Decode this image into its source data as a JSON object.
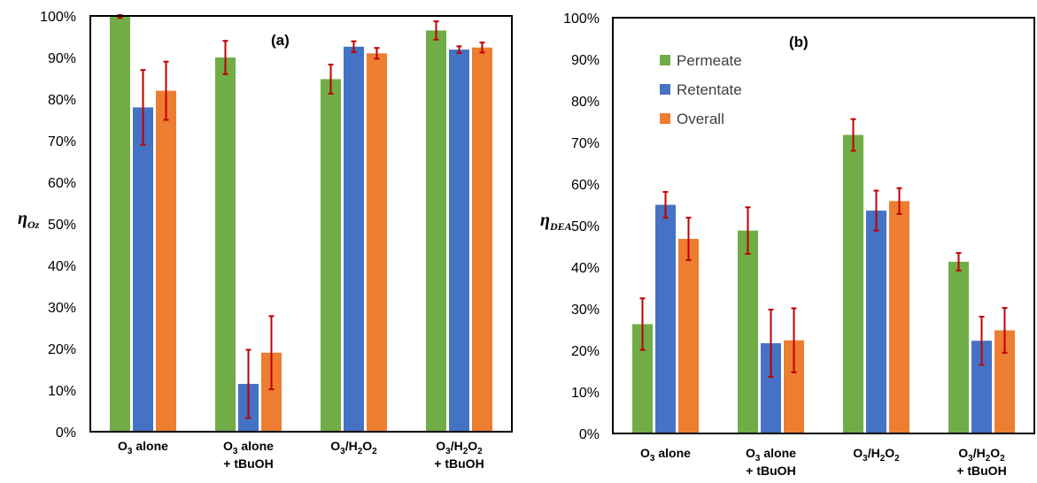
{
  "colors": {
    "permeate": "#70ad47",
    "retentate": "#4472c4",
    "overall": "#ed7d31",
    "error": "#c00000"
  },
  "chart_data": [
    {
      "type": "bar",
      "panel_label": "(a)",
      "ylabel_main": "η",
      "ylabel_sub": "Oz",
      "ylim": [
        0,
        100
      ],
      "yticks": [
        "0%",
        "10%",
        "20%",
        "30%",
        "40%",
        "50%",
        "60%",
        "70%",
        "80%",
        "90%",
        "100%"
      ],
      "categories": [
        {
          "line1": "O3 alone",
          "line2": ""
        },
        {
          "line1": "O3 alone",
          "line2": "+ tBuOH"
        },
        {
          "line1": "O3/H2O2",
          "line2": ""
        },
        {
          "line1": "O3/H2O2",
          "line2": "+ tBuOH"
        }
      ],
      "series": [
        {
          "key": "permeate",
          "values": [
            100,
            90,
            84.8,
            96.5
          ],
          "errors": [
            0.5,
            4,
            3.5,
            2.2
          ]
        },
        {
          "key": "retentate",
          "values": [
            78,
            11.5,
            92.6,
            91.9
          ],
          "errors": [
            9,
            8.2,
            1.3,
            0.8
          ]
        },
        {
          "key": "overall",
          "values": [
            82,
            19,
            91,
            92.4
          ],
          "errors": [
            7,
            8.8,
            1.3,
            1.2
          ]
        }
      ]
    },
    {
      "type": "bar",
      "panel_label": "(b)",
      "ylabel_main": "η",
      "ylabel_sub": "DEA",
      "ylim": [
        0,
        100
      ],
      "yticks": [
        "0%",
        "10%",
        "20%",
        "30%",
        "40%",
        "50%",
        "60%",
        "70%",
        "80%",
        "90%",
        "100%"
      ],
      "categories": [
        {
          "line1": "O3 alone",
          "line2": ""
        },
        {
          "line1": "O3 alone",
          "line2": "+ tBuOH"
        },
        {
          "line1": "O3/H2O2",
          "line2": ""
        },
        {
          "line1": "O3/H2O2",
          "line2": "+ tBuOH"
        }
      ],
      "legend": [
        "Permeate",
        "Retentate",
        "Overall"
      ],
      "series": [
        {
          "name": "Permeate",
          "key": "permeate",
          "values": [
            26.3,
            48.8,
            71.8,
            41.3
          ],
          "errors": [
            6.2,
            5.6,
            3.8,
            2.1
          ]
        },
        {
          "name": "Retentate",
          "key": "retentate",
          "values": [
            55,
            21.7,
            53.6,
            22.3
          ],
          "errors": [
            3.1,
            8.1,
            4.8,
            5.8
          ]
        },
        {
          "name": "Overall",
          "key": "overall",
          "values": [
            46.8,
            22.4,
            55.9,
            24.8
          ],
          "errors": [
            5.1,
            7.7,
            3.1,
            5.4
          ]
        }
      ]
    }
  ]
}
